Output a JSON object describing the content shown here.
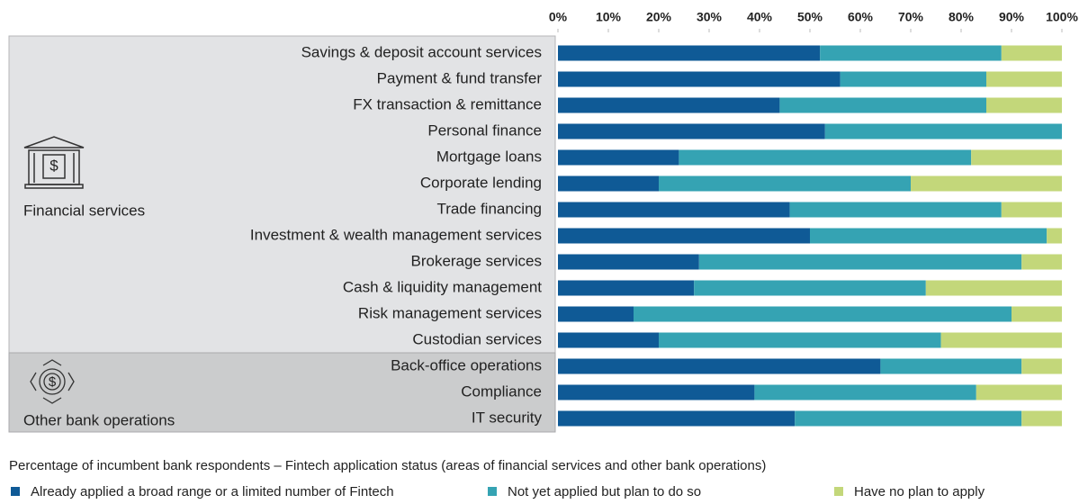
{
  "chart_data": {
    "type": "stacked-barh",
    "categories": [
      "Savings & deposit account services",
      "Payment & fund transfer",
      "FX transaction & remittance",
      "Personal finance",
      "Mortgage loans",
      "Corporate lending",
      "Trade financing",
      "Investment & wealth management services",
      "Brokerage services",
      "Cash & liquidity management",
      "Risk management services",
      "Custodian services",
      "Back-office operations",
      "Compliance",
      "IT security"
    ],
    "groups": [
      {
        "label": "Financial services"
      },
      {
        "label": "Other bank operations"
      }
    ],
    "series": [
      {
        "name": "Already applied a broad range or a limited number of Fintech",
        "color": "#0f5a96",
        "values": [
          52,
          56,
          44,
          53,
          24,
          20,
          46,
          50,
          28,
          27,
          15,
          20,
          64,
          39,
          47
        ]
      },
      {
        "name": "Not yet applied but plan to do so",
        "color": "#35a3b3",
        "values": [
          36,
          29,
          41,
          47,
          58,
          50,
          42,
          47,
          64,
          46,
          75,
          56,
          28,
          44,
          45
        ]
      },
      {
        "name": "Have no plan to apply",
        "color": "#c3d77a",
        "values": [
          12,
          15,
          15,
          0,
          18,
          30,
          12,
          3,
          8,
          27,
          10,
          24,
          8,
          17,
          8
        ]
      }
    ],
    "xlim": [
      0,
      100
    ],
    "xticks": [
      {
        "value": 0,
        "label": "0%"
      },
      {
        "value": 10,
        "label": "10%"
      },
      {
        "value": 20,
        "label": "20%"
      },
      {
        "value": 30,
        "label": "30%"
      },
      {
        "value": 40,
        "label": "40%"
      },
      {
        "value": 50,
        "label": "50%"
      },
      {
        "value": 60,
        "label": "60%"
      },
      {
        "value": 70,
        "label": "70%"
      },
      {
        "value": 80,
        "label": "80%"
      },
      {
        "value": 90,
        "label": "90%"
      },
      {
        "value": 100,
        "label": "100%"
      }
    ],
    "caption": "Percentage of incumbent bank respondents – Fintech application status (areas of financial services and other bank operations)"
  }
}
